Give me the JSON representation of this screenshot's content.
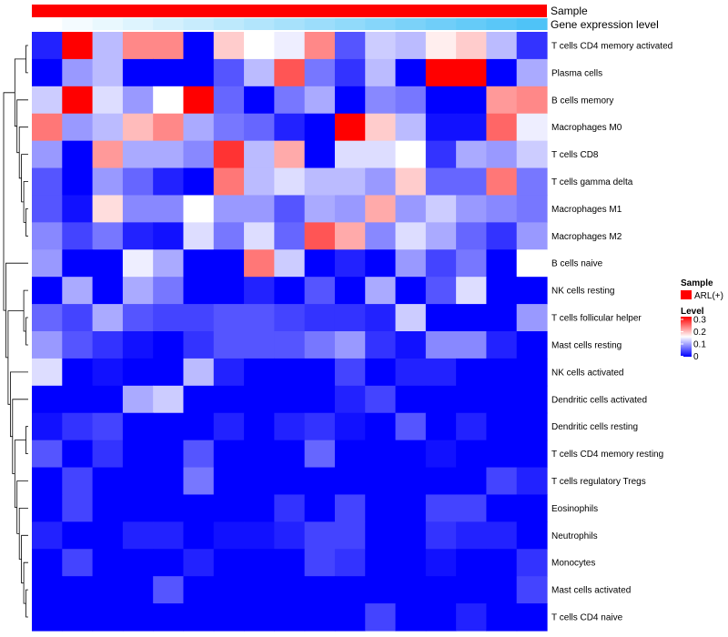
{
  "chart_data": {
    "type": "heatmap",
    "annotations": [
      {
        "label": "Sample",
        "kind": "categorical",
        "color": "#ff0000"
      },
      {
        "label": "Gene expression level",
        "kind": "gradient",
        "low_color": "#ffffff",
        "high_color": "#4fc3f7"
      }
    ],
    "rows": [
      "T cells CD4 memory activated",
      "Plasma cells",
      "B cells memory",
      "Macrophages M0",
      "T cells CD8",
      "T cells gamma delta",
      "Macrophages M1",
      "Macrophages M2",
      "B cells naive",
      "NK cells resting",
      "T cells follicular helper",
      "Mast cells resting",
      "NK cells activated",
      "Dendritic cells activated",
      "Dendritic cells resting",
      "T cells CD4 memory resting",
      "T cells regulatory  Tregs",
      "Eosinophils",
      "Neutrophils",
      "Monocytes",
      "Mast cells activated",
      "T cells CD4 naive"
    ],
    "n_columns": 17,
    "values": [
      [
        0.02,
        0.3,
        0.11,
        0.22,
        0.22,
        0.0,
        0.18,
        0.15,
        0.14,
        0.22,
        0.05,
        0.12,
        0.11,
        0.16,
        0.18,
        0.11,
        0.03
      ],
      [
        0.0,
        0.09,
        0.11,
        0.0,
        0.0,
        0.0,
        0.05,
        0.11,
        0.25,
        0.07,
        0.03,
        0.11,
        0.0,
        0.3,
        0.3,
        0.0,
        0.1
      ],
      [
        0.12,
        0.3,
        0.13,
        0.09,
        0.15,
        0.3,
        0.06,
        0.0,
        0.07,
        0.1,
        0.0,
        0.08,
        0.07,
        0.0,
        0.0,
        0.21,
        0.22
      ],
      [
        0.23,
        0.09,
        0.11,
        0.19,
        0.22,
        0.1,
        0.07,
        0.06,
        0.02,
        0.0,
        0.3,
        0.18,
        0.11,
        0.01,
        0.01,
        0.24,
        0.14
      ],
      [
        0.09,
        0.0,
        0.21,
        0.1,
        0.1,
        0.08,
        0.27,
        0.11,
        0.2,
        0.0,
        0.13,
        0.13,
        0.15,
        0.03,
        0.1,
        0.09,
        0.12
      ],
      [
        0.05,
        0.0,
        0.09,
        0.06,
        0.02,
        0.0,
        0.23,
        0.11,
        0.13,
        0.11,
        0.11,
        0.09,
        0.18,
        0.06,
        0.06,
        0.23,
        0.07
      ],
      [
        0.05,
        0.01,
        0.17,
        0.08,
        0.08,
        0.15,
        0.09,
        0.09,
        0.05,
        0.1,
        0.09,
        0.2,
        0.09,
        0.12,
        0.09,
        0.08,
        0.07
      ],
      [
        0.08,
        0.04,
        0.07,
        0.02,
        0.01,
        0.13,
        0.07,
        0.13,
        0.06,
        0.25,
        0.2,
        0.08,
        0.13,
        0.1,
        0.06,
        0.03,
        0.09
      ],
      [
        0.09,
        0.0,
        0.0,
        0.14,
        0.1,
        0.0,
        0.0,
        0.23,
        0.12,
        0.0,
        0.02,
        0.0,
        0.09,
        0.04,
        0.07,
        0.0,
        0.15
      ],
      [
        0.0,
        0.1,
        0.0,
        0.1,
        0.07,
        0.0,
        0.0,
        0.02,
        0.0,
        0.05,
        0.0,
        0.1,
        0.0,
        0.05,
        0.13,
        0.0,
        0.0
      ],
      [
        0.06,
        0.04,
        0.1,
        0.05,
        0.04,
        0.04,
        0.05,
        0.05,
        0.04,
        0.03,
        0.03,
        0.02,
        0.12,
        0.0,
        0.0,
        0.0,
        0.09
      ],
      [
        0.09,
        0.05,
        0.03,
        0.01,
        0.0,
        0.03,
        0.05,
        0.05,
        0.05,
        0.07,
        0.09,
        0.03,
        0.01,
        0.08,
        0.08,
        0.02,
        0.0
      ],
      [
        0.13,
        0.0,
        0.01,
        0.0,
        0.0,
        0.11,
        0.02,
        0.0,
        0.0,
        0.0,
        0.04,
        0.0,
        0.02,
        0.02,
        0.0,
        0.0,
        0.0
      ],
      [
        0.0,
        0.0,
        0.0,
        0.1,
        0.12,
        0.0,
        0.0,
        0.0,
        0.0,
        0.0,
        0.02,
        0.04,
        0.0,
        0.0,
        0.0,
        0.0,
        0.0
      ],
      [
        0.01,
        0.03,
        0.04,
        0.0,
        0.0,
        0.0,
        0.02,
        0.0,
        0.02,
        0.03,
        0.01,
        0.0,
        0.05,
        0.0,
        0.02,
        0.0,
        0.0
      ],
      [
        0.05,
        0.0,
        0.03,
        0.0,
        0.0,
        0.05,
        0.0,
        0.0,
        0.0,
        0.06,
        0.0,
        0.0,
        0.0,
        0.01,
        0.0,
        0.0,
        0.0
      ],
      [
        0.0,
        0.04,
        0.0,
        0.0,
        0.0,
        0.07,
        0.0,
        0.0,
        0.0,
        0.0,
        0.0,
        0.0,
        0.0,
        0.0,
        0.0,
        0.04,
        0.02
      ],
      [
        0.0,
        0.04,
        0.0,
        0.0,
        0.0,
        0.0,
        0.0,
        0.0,
        0.03,
        0.0,
        0.04,
        0.0,
        0.0,
        0.04,
        0.04,
        0.0,
        0.0
      ],
      [
        0.02,
        0.0,
        0.0,
        0.02,
        0.02,
        0.0,
        0.01,
        0.01,
        0.02,
        0.04,
        0.04,
        0.0,
        0.0,
        0.03,
        0.02,
        0.02,
        0.0
      ],
      [
        0.0,
        0.04,
        0.0,
        0.0,
        0.0,
        0.02,
        0.0,
        0.0,
        0.0,
        0.04,
        0.03,
        0.0,
        0.0,
        0.01,
        0.0,
        0.0,
        0.03
      ],
      [
        0.0,
        0.0,
        0.0,
        0.0,
        0.05,
        0.0,
        0.0,
        0.0,
        0.0,
        0.0,
        0.0,
        0.0,
        0.0,
        0.0,
        0.0,
        0.0,
        0.04
      ],
      [
        0.0,
        0.0,
        0.0,
        0.0,
        0.0,
        0.0,
        0.0,
        0.0,
        0.0,
        0.0,
        0.0,
        0.04,
        0.0,
        0.0,
        0.02,
        0.0,
        0.0
      ]
    ],
    "color_scale": {
      "min": 0,
      "mid": 0.15,
      "max": 0.3,
      "low_color": "#0000ff",
      "mid_color": "#ffffff",
      "high_color": "#ff0000"
    },
    "legend": {
      "sample_title": "Sample",
      "sample_entry": "ARL(+)",
      "level_title": "Level",
      "level_ticks": [
        "0.3",
        "0.2",
        "0.1",
        "0"
      ],
      "placement": "right"
    },
    "dendrogram": "rows, left side"
  }
}
